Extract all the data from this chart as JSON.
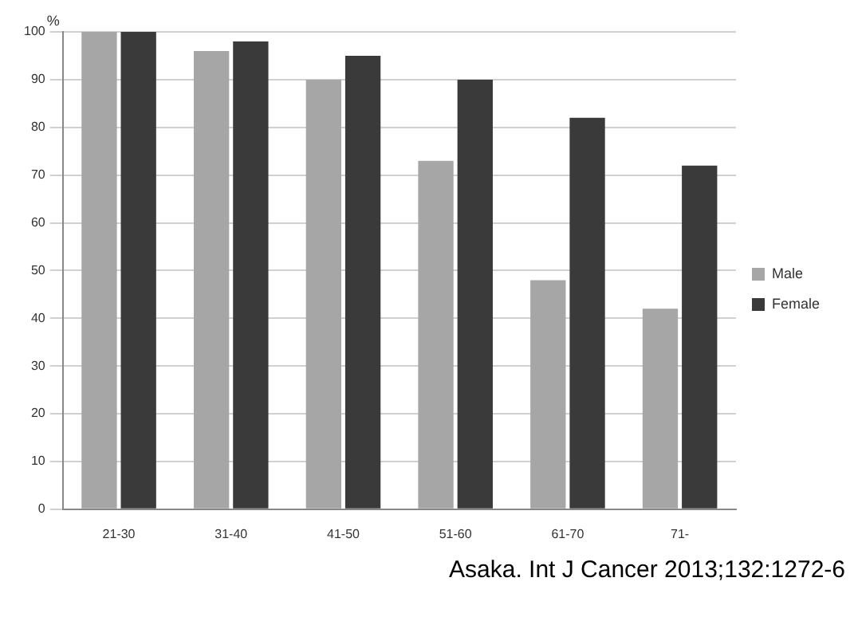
{
  "chart_data": {
    "type": "bar",
    "ylabel": "%",
    "categories": [
      "21-30",
      "31-40",
      "41-50",
      "51-60",
      "61-70",
      "71-"
    ],
    "series": [
      {
        "name": "Male",
        "color": "#a6a6a6",
        "values": [
          100,
          96,
          90,
          73,
          48,
          42
        ]
      },
      {
        "name": "Female",
        "color": "#3a3a3a",
        "values": [
          100,
          98,
          95,
          90,
          82,
          72
        ]
      }
    ],
    "ylim": [
      0,
      100
    ],
    "yticks": [
      0,
      10,
      20,
      30,
      40,
      50,
      60,
      70,
      80,
      90,
      100
    ],
    "grid": "y",
    "legend": "right",
    "annotations": [
      "Asaka. Int J Cancer 2013;132:1272-6"
    ]
  }
}
